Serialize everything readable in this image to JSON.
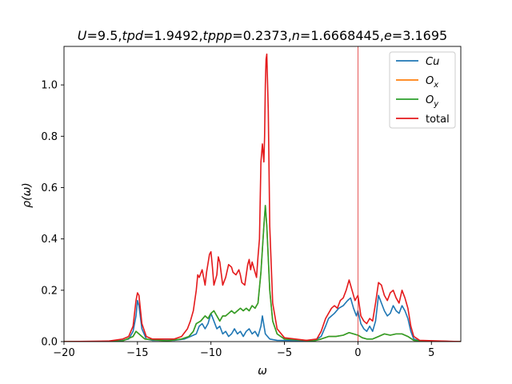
{
  "chart_data": {
    "type": "line",
    "title": "U=9.5,tpd=1.9492,tppp=0.2373,n=1.6668445,e=3.1695",
    "xlabel": "ω",
    "ylabel": "ρ(ω)",
    "xlim": [
      -20,
      7
    ],
    "ylim": [
      0,
      1.15
    ],
    "xticks": [
      -20,
      -15,
      -10,
      -5,
      0,
      5
    ],
    "yticks": [
      0.0,
      0.2,
      0.4,
      0.6,
      0.8,
      1.0
    ],
    "xtick_labels": [
      "−20",
      "−15",
      "−10",
      "−5",
      "0",
      "5"
    ],
    "ytick_labels": [
      "0.0",
      "0.2",
      "0.4",
      "0.6",
      "0.8",
      "1.0"
    ],
    "vline": {
      "x": 0,
      "color": "#e03030"
    },
    "legend_position": "top-right",
    "grid": false,
    "series": [
      {
        "name": "Cu",
        "color": "#1f77b4",
        "points": [
          [
            -20,
            0.0
          ],
          [
            -17,
            0.0
          ],
          [
            -16,
            0.005
          ],
          [
            -15.6,
            0.01
          ],
          [
            -15.3,
            0.04
          ],
          [
            -15.1,
            0.1
          ],
          [
            -15.0,
            0.16
          ],
          [
            -14.9,
            0.14
          ],
          [
            -14.7,
            0.05
          ],
          [
            -14.4,
            0.01
          ],
          [
            -14,
            0.005
          ],
          [
            -12.5,
            0.005
          ],
          [
            -11.8,
            0.01
          ],
          [
            -11.4,
            0.02
          ],
          [
            -11.0,
            0.03
          ],
          [
            -10.8,
            0.06
          ],
          [
            -10.6,
            0.07
          ],
          [
            -10.4,
            0.05
          ],
          [
            -10.2,
            0.07
          ],
          [
            -10.0,
            0.11
          ],
          [
            -9.8,
            0.08
          ],
          [
            -9.6,
            0.05
          ],
          [
            -9.4,
            0.06
          ],
          [
            -9.2,
            0.03
          ],
          [
            -9.0,
            0.04
          ],
          [
            -8.8,
            0.02
          ],
          [
            -8.6,
            0.03
          ],
          [
            -8.4,
            0.05
          ],
          [
            -8.2,
            0.03
          ],
          [
            -8.0,
            0.04
          ],
          [
            -7.8,
            0.02
          ],
          [
            -7.6,
            0.04
          ],
          [
            -7.4,
            0.05
          ],
          [
            -7.2,
            0.03
          ],
          [
            -7.0,
            0.04
          ],
          [
            -6.8,
            0.02
          ],
          [
            -6.6,
            0.06
          ],
          [
            -6.5,
            0.1
          ],
          [
            -6.3,
            0.03
          ],
          [
            -6.0,
            0.01
          ],
          [
            -5.5,
            0.005
          ],
          [
            -3,
            0.003
          ],
          [
            -2.5,
            0.02
          ],
          [
            -2.2,
            0.06
          ],
          [
            -2.0,
            0.09
          ],
          [
            -1.8,
            0.1
          ],
          [
            -1.6,
            0.11
          ],
          [
            -1.3,
            0.13
          ],
          [
            -1.0,
            0.14
          ],
          [
            -0.7,
            0.16
          ],
          [
            -0.5,
            0.17
          ],
          [
            -0.3,
            0.13
          ],
          [
            -0.1,
            0.1
          ],
          [
            0.0,
            0.12
          ],
          [
            0.2,
            0.07
          ],
          [
            0.4,
            0.05
          ],
          [
            0.6,
            0.04
          ],
          [
            0.8,
            0.06
          ],
          [
            1.0,
            0.04
          ],
          [
            1.2,
            0.08
          ],
          [
            1.4,
            0.18
          ],
          [
            1.6,
            0.15
          ],
          [
            1.8,
            0.12
          ],
          [
            2.0,
            0.1
          ],
          [
            2.2,
            0.11
          ],
          [
            2.4,
            0.14
          ],
          [
            2.6,
            0.12
          ],
          [
            2.8,
            0.11
          ],
          [
            3.0,
            0.14
          ],
          [
            3.2,
            0.12
          ],
          [
            3.4,
            0.09
          ],
          [
            3.6,
            0.04
          ],
          [
            3.8,
            0.01
          ],
          [
            4.2,
            0.003
          ],
          [
            7,
            0.0
          ]
        ]
      },
      {
        "name": "Ox",
        "color": "#ff7f0e",
        "points": [
          [
            -20,
            0.0
          ],
          [
            -17,
            0.0
          ],
          [
            -16,
            0.003
          ],
          [
            -15.3,
            0.02
          ],
          [
            -15.1,
            0.04
          ],
          [
            -14.9,
            0.03
          ],
          [
            -14.5,
            0.01
          ],
          [
            -13,
            0.003
          ],
          [
            -12,
            0.01
          ],
          [
            -11.5,
            0.02
          ],
          [
            -11.2,
            0.04
          ],
          [
            -11.0,
            0.07
          ],
          [
            -10.7,
            0.08
          ],
          [
            -10.4,
            0.1
          ],
          [
            -10.2,
            0.09
          ],
          [
            -10.0,
            0.11
          ],
          [
            -9.8,
            0.12
          ],
          [
            -9.6,
            0.1
          ],
          [
            -9.4,
            0.08
          ],
          [
            -9.2,
            0.1
          ],
          [
            -9.0,
            0.1
          ],
          [
            -8.8,
            0.11
          ],
          [
            -8.6,
            0.12
          ],
          [
            -8.4,
            0.11
          ],
          [
            -8.2,
            0.12
          ],
          [
            -8.0,
            0.13
          ],
          [
            -7.8,
            0.12
          ],
          [
            -7.6,
            0.13
          ],
          [
            -7.4,
            0.12
          ],
          [
            -7.2,
            0.14
          ],
          [
            -7.0,
            0.13
          ],
          [
            -6.8,
            0.15
          ],
          [
            -6.6,
            0.27
          ],
          [
            -6.4,
            0.45
          ],
          [
            -6.3,
            0.53
          ],
          [
            -6.2,
            0.45
          ],
          [
            -6.0,
            0.2
          ],
          [
            -5.8,
            0.08
          ],
          [
            -5.5,
            0.03
          ],
          [
            -5.0,
            0.01
          ],
          [
            -3,
            0.003
          ],
          [
            -2.5,
            0.01
          ],
          [
            -2.0,
            0.02
          ],
          [
            -1.5,
            0.02
          ],
          [
            -1.0,
            0.025
          ],
          [
            -0.6,
            0.035
          ],
          [
            -0.3,
            0.03
          ],
          [
            0.0,
            0.025
          ],
          [
            0.3,
            0.015
          ],
          [
            0.6,
            0.01
          ],
          [
            1.0,
            0.01
          ],
          [
            1.4,
            0.02
          ],
          [
            1.8,
            0.03
          ],
          [
            2.2,
            0.025
          ],
          [
            2.6,
            0.03
          ],
          [
            3.0,
            0.03
          ],
          [
            3.4,
            0.02
          ],
          [
            3.8,
            0.005
          ],
          [
            4.5,
            0.002
          ],
          [
            7,
            0.0
          ]
        ]
      },
      {
        "name": "Oy",
        "color": "#2ca02c",
        "points": [
          [
            -20,
            0.0
          ],
          [
            -17,
            0.0
          ],
          [
            -16,
            0.003
          ],
          [
            -15.3,
            0.02
          ],
          [
            -15.1,
            0.04
          ],
          [
            -14.9,
            0.03
          ],
          [
            -14.5,
            0.01
          ],
          [
            -13,
            0.003
          ],
          [
            -12,
            0.01
          ],
          [
            -11.5,
            0.02
          ],
          [
            -11.2,
            0.04
          ],
          [
            -11.0,
            0.07
          ],
          [
            -10.7,
            0.08
          ],
          [
            -10.4,
            0.1
          ],
          [
            -10.2,
            0.09
          ],
          [
            -10.0,
            0.11
          ],
          [
            -9.8,
            0.12
          ],
          [
            -9.6,
            0.1
          ],
          [
            -9.4,
            0.08
          ],
          [
            -9.2,
            0.1
          ],
          [
            -9.0,
            0.1
          ],
          [
            -8.8,
            0.11
          ],
          [
            -8.6,
            0.12
          ],
          [
            -8.4,
            0.11
          ],
          [
            -8.2,
            0.12
          ],
          [
            -8.0,
            0.13
          ],
          [
            -7.8,
            0.12
          ],
          [
            -7.6,
            0.13
          ],
          [
            -7.4,
            0.12
          ],
          [
            -7.2,
            0.14
          ],
          [
            -7.0,
            0.13
          ],
          [
            -6.8,
            0.15
          ],
          [
            -6.6,
            0.27
          ],
          [
            -6.4,
            0.45
          ],
          [
            -6.3,
            0.53
          ],
          [
            -6.2,
            0.45
          ],
          [
            -6.0,
            0.2
          ],
          [
            -5.8,
            0.08
          ],
          [
            -5.5,
            0.03
          ],
          [
            -5.0,
            0.01
          ],
          [
            -3,
            0.003
          ],
          [
            -2.5,
            0.01
          ],
          [
            -2.0,
            0.02
          ],
          [
            -1.5,
            0.02
          ],
          [
            -1.0,
            0.025
          ],
          [
            -0.6,
            0.035
          ],
          [
            -0.3,
            0.03
          ],
          [
            0.0,
            0.025
          ],
          [
            0.3,
            0.015
          ],
          [
            0.6,
            0.01
          ],
          [
            1.0,
            0.01
          ],
          [
            1.4,
            0.02
          ],
          [
            1.8,
            0.03
          ],
          [
            2.2,
            0.025
          ],
          [
            2.6,
            0.03
          ],
          [
            3.0,
            0.03
          ],
          [
            3.4,
            0.02
          ],
          [
            3.8,
            0.005
          ],
          [
            4.5,
            0.002
          ],
          [
            7,
            0.0
          ]
        ]
      },
      {
        "name": "total",
        "color": "#e41a1c",
        "points": [
          [
            -20,
            0.0
          ],
          [
            -17,
            0.002
          ],
          [
            -16,
            0.01
          ],
          [
            -15.6,
            0.02
          ],
          [
            -15.3,
            0.06
          ],
          [
            -15.1,
            0.16
          ],
          [
            -15.0,
            0.19
          ],
          [
            -14.9,
            0.18
          ],
          [
            -14.7,
            0.07
          ],
          [
            -14.4,
            0.02
          ],
          [
            -14,
            0.01
          ],
          [
            -12.5,
            0.01
          ],
          [
            -12.0,
            0.02
          ],
          [
            -11.6,
            0.05
          ],
          [
            -11.4,
            0.08
          ],
          [
            -11.2,
            0.12
          ],
          [
            -11.0,
            0.2
          ],
          [
            -10.9,
            0.26
          ],
          [
            -10.8,
            0.25
          ],
          [
            -10.6,
            0.28
          ],
          [
            -10.4,
            0.22
          ],
          [
            -10.3,
            0.27
          ],
          [
            -10.1,
            0.34
          ],
          [
            -10.0,
            0.35
          ],
          [
            -9.9,
            0.29
          ],
          [
            -9.8,
            0.22
          ],
          [
            -9.6,
            0.26
          ],
          [
            -9.5,
            0.33
          ],
          [
            -9.4,
            0.31
          ],
          [
            -9.2,
            0.22
          ],
          [
            -9.0,
            0.25
          ],
          [
            -8.8,
            0.3
          ],
          [
            -8.6,
            0.29
          ],
          [
            -8.5,
            0.27
          ],
          [
            -8.3,
            0.26
          ],
          [
            -8.1,
            0.28
          ],
          [
            -8.0,
            0.26
          ],
          [
            -7.9,
            0.23
          ],
          [
            -7.7,
            0.22
          ],
          [
            -7.5,
            0.3
          ],
          [
            -7.4,
            0.32
          ],
          [
            -7.3,
            0.28
          ],
          [
            -7.2,
            0.31
          ],
          [
            -7.0,
            0.27
          ],
          [
            -6.9,
            0.25
          ],
          [
            -6.8,
            0.33
          ],
          [
            -6.7,
            0.4
          ],
          [
            -6.6,
            0.7
          ],
          [
            -6.5,
            0.77
          ],
          [
            -6.4,
            0.7
          ],
          [
            -6.35,
            0.8
          ],
          [
            -6.3,
            1.0
          ],
          [
            -6.25,
            1.1
          ],
          [
            -6.2,
            1.12
          ],
          [
            -6.1,
            0.9
          ],
          [
            -6.0,
            0.45
          ],
          [
            -5.8,
            0.15
          ],
          [
            -5.5,
            0.05
          ],
          [
            -5.0,
            0.015
          ],
          [
            -3.5,
            0.005
          ],
          [
            -2.8,
            0.01
          ],
          [
            -2.5,
            0.04
          ],
          [
            -2.2,
            0.09
          ],
          [
            -2.0,
            0.11
          ],
          [
            -1.8,
            0.13
          ],
          [
            -1.6,
            0.14
          ],
          [
            -1.4,
            0.13
          ],
          [
            -1.2,
            0.16
          ],
          [
            -1.0,
            0.17
          ],
          [
            -0.8,
            0.2
          ],
          [
            -0.6,
            0.24
          ],
          [
            -0.4,
            0.2
          ],
          [
            -0.2,
            0.16
          ],
          [
            0.0,
            0.18
          ],
          [
            0.2,
            0.1
          ],
          [
            0.4,
            0.08
          ],
          [
            0.6,
            0.07
          ],
          [
            0.8,
            0.09
          ],
          [
            1.0,
            0.08
          ],
          [
            1.2,
            0.15
          ],
          [
            1.4,
            0.23
          ],
          [
            1.6,
            0.22
          ],
          [
            1.8,
            0.18
          ],
          [
            2.0,
            0.16
          ],
          [
            2.2,
            0.19
          ],
          [
            2.4,
            0.2
          ],
          [
            2.6,
            0.17
          ],
          [
            2.8,
            0.15
          ],
          [
            3.0,
            0.2
          ],
          [
            3.2,
            0.17
          ],
          [
            3.4,
            0.13
          ],
          [
            3.6,
            0.06
          ],
          [
            3.8,
            0.02
          ],
          [
            4.2,
            0.005
          ],
          [
            7,
            0.0
          ]
        ]
      }
    ],
    "legend": [
      {
        "label": "Cu",
        "series": "Cu",
        "italic": true
      },
      {
        "label": "O",
        "sub": "x",
        "series": "Ox",
        "italic": true
      },
      {
        "label": "O",
        "sub": "y",
        "series": "Oy",
        "italic": true
      },
      {
        "label": "total",
        "series": "total",
        "italic": false
      }
    ]
  }
}
